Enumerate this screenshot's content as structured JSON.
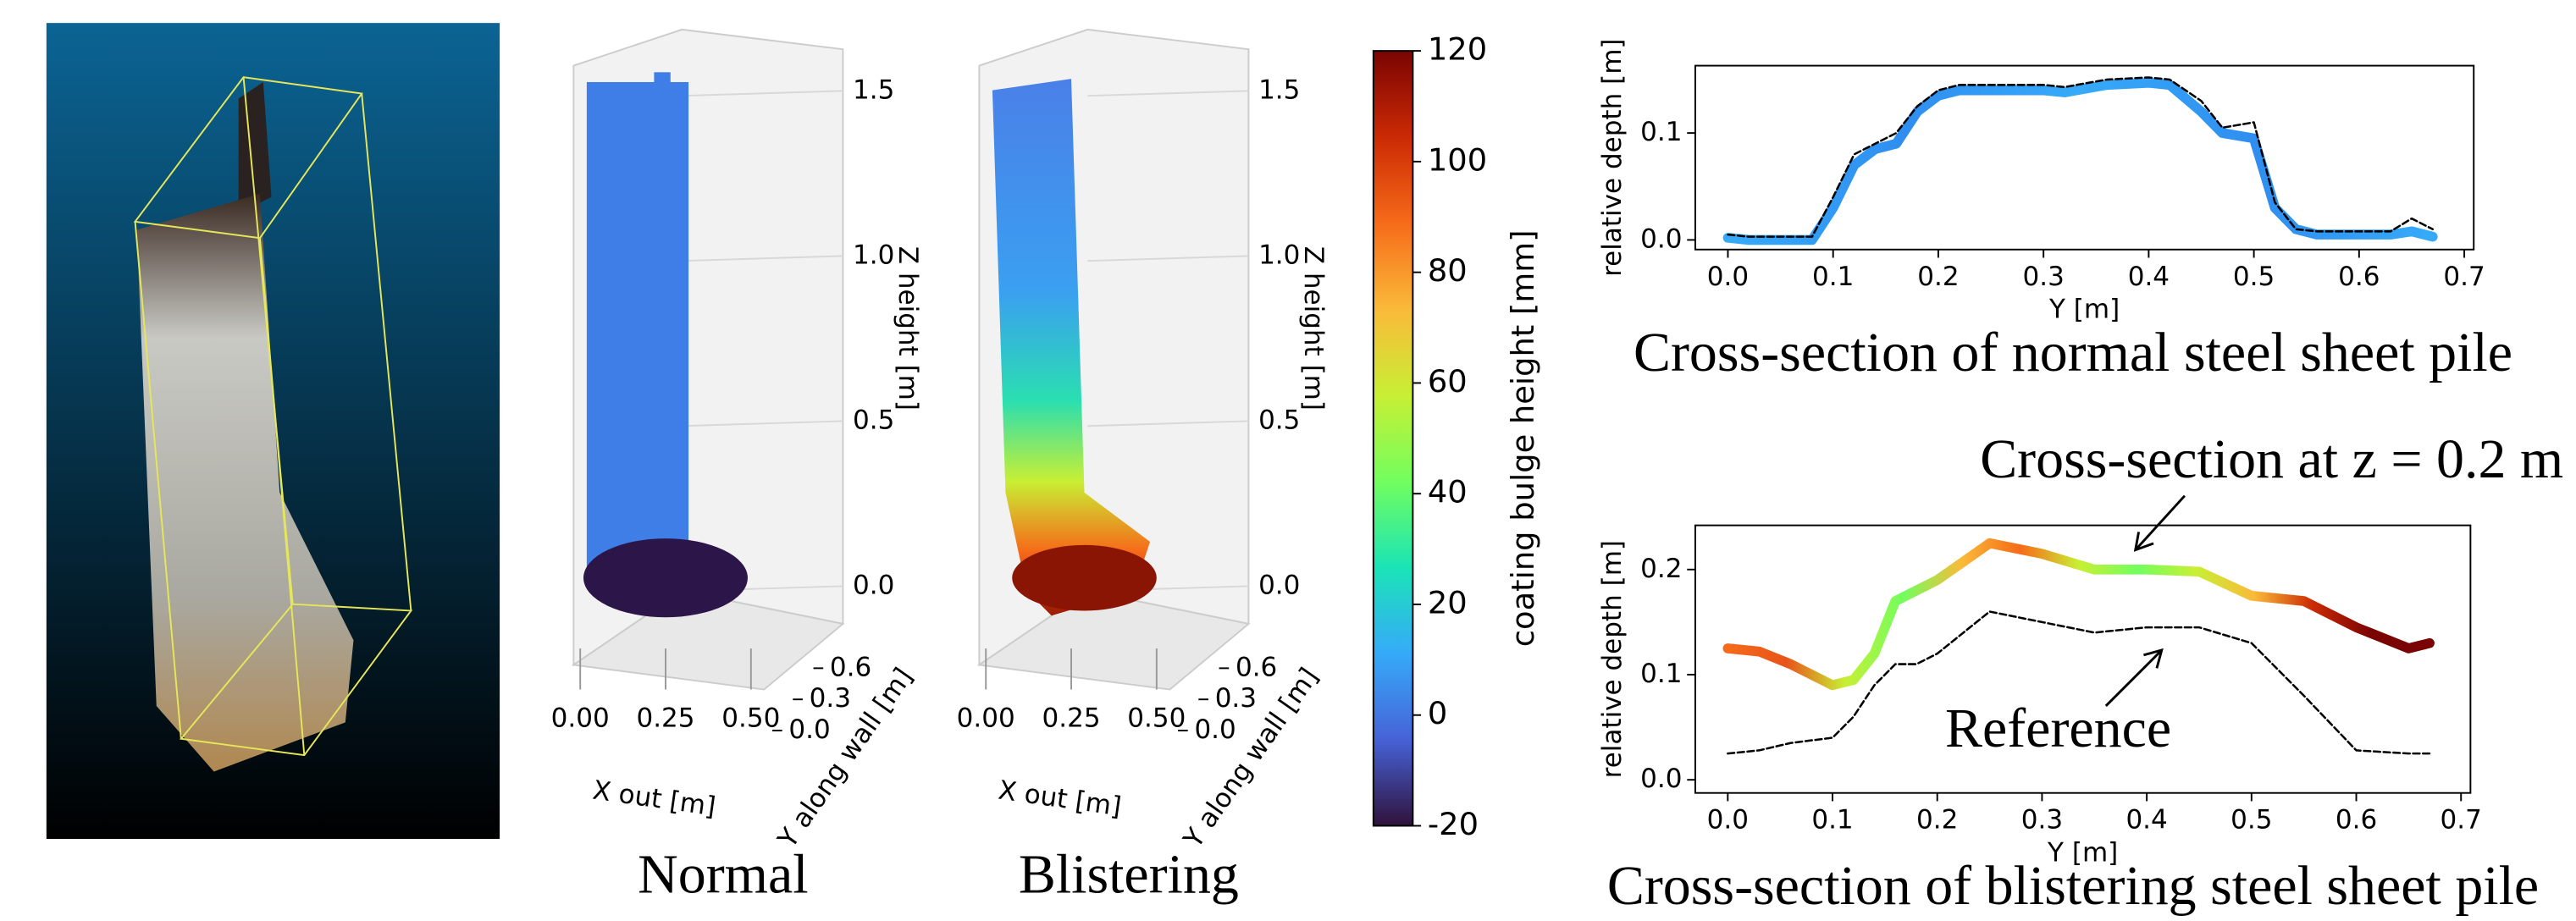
{
  "chart_data": [
    {
      "type": "scatter3d",
      "title": "Normal",
      "xlabel": "X out [m]",
      "ylabel": "Y along wall [m]",
      "zlabel": "Z height [m]",
      "xlim": [
        -0.03,
        0.55
      ],
      "ylim": [
        0,
        0.75
      ],
      "zlim": [
        -0.15,
        1.65
      ],
      "xticks": [
        {
          "value": 0,
          "label": "0.00"
        },
        {
          "value": 0.25,
          "label": "0.25"
        },
        {
          "value": 0.5,
          "label": "0.50"
        }
      ],
      "yticks": [
        {
          "value": 0,
          "label": "0.0"
        },
        0.3,
        0.6
      ],
      "zticks": [
        {
          "value": 0,
          "label": "0.0"
        },
        0.5,
        {
          "value": 1,
          "label": "1.0"
        },
        1.5
      ]
    },
    {
      "type": "scatter3d",
      "title": "Blistering",
      "xlabel": "X out [m]",
      "ylabel": "Y along wall [m]",
      "zlabel": "Z height [m]",
      "xlim": [
        -0.03,
        0.55
      ],
      "ylim": [
        0,
        0.75
      ],
      "zlim": [
        -0.15,
        1.65
      ],
      "xticks": [
        {
          "value": 0,
          "label": "0.00"
        },
        {
          "value": 0.25,
          "label": "0.25"
        },
        {
          "value": 0.5,
          "label": "0.50"
        }
      ],
      "yticks": [
        {
          "value": 0,
          "label": "0.0"
        },
        0.3,
        0.6
      ],
      "zticks": [
        {
          "value": 0,
          "label": "0.0"
        },
        0.5,
        {
          "value": 1,
          "label": "1.0"
        },
        1.5
      ]
    },
    {
      "type": "colorbar",
      "label": "coating bulge height [mm]",
      "ylim": [
        -20,
        120
      ],
      "yticks": [
        -20,
        0,
        20,
        40,
        60,
        80,
        100,
        120
      ],
      "colors": [
        "#30123b",
        "#4662d7",
        "#36aaf9",
        "#1ae4b6",
        "#72fe5e",
        "#c8ef34",
        "#faba39",
        "#f66b19",
        "#cb2a04",
        "#7a0403"
      ]
    },
    {
      "type": "line",
      "title": "Cross-section of normal steel sheet pile",
      "xlabel": "Y [m]",
      "ylabel": "relative depth [m]",
      "xlim": [
        -0.031,
        0.709
      ],
      "ylim": [
        -0.009,
        0.163
      ],
      "xticks": [
        {
          "value": 0,
          "label": "0.0"
        },
        0.1,
        0.2,
        0.3,
        0.4,
        0.5,
        0.6,
        0.7
      ],
      "yticks": [
        {
          "value": 0,
          "label": "0.0"
        },
        0.1
      ],
      "series": [
        {
          "style": "solid",
          "colors": [
            "#36aaf9",
            "#2f8ef0",
            "#36aaf9",
            "#2f8ef0",
            "#36aaf9"
          ],
          "x": [
            0,
            0.02,
            0.05,
            0.08,
            0.1,
            0.12,
            0.14,
            0.16,
            0.18,
            0.2,
            0.22,
            0.26,
            0.3,
            0.32,
            0.36,
            0.4,
            0.42,
            0.45,
            0.47,
            0.5,
            0.52,
            0.54,
            0.56,
            0.6,
            0.63,
            0.65,
            0.67
          ],
          "values": [
            0.002,
            0,
            0,
            0,
            0.03,
            0.07,
            0.085,
            0.09,
            0.12,
            0.135,
            0.14,
            0.14,
            0.14,
            0.138,
            0.145,
            0.147,
            0.145,
            0.12,
            0.1,
            0.095,
            0.03,
            0.01,
            0.005,
            0.005,
            0.005,
            0.008,
            0.003
          ]
        },
        {
          "style": "dashed",
          "colors": [
            "#000000"
          ],
          "x": [
            0,
            0.02,
            0.05,
            0.08,
            0.1,
            0.12,
            0.14,
            0.16,
            0.18,
            0.2,
            0.22,
            0.26,
            0.3,
            0.32,
            0.36,
            0.4,
            0.42,
            0.45,
            0.47,
            0.5,
            0.52,
            0.54,
            0.56,
            0.6,
            0.63,
            0.65,
            0.67
          ],
          "values": [
            0.005,
            0.003,
            0.003,
            0.003,
            0.04,
            0.08,
            0.09,
            0.1,
            0.125,
            0.14,
            0.145,
            0.145,
            0.145,
            0.143,
            0.15,
            0.152,
            0.15,
            0.13,
            0.105,
            0.11,
            0.035,
            0.01,
            0.008,
            0.008,
            0.008,
            0.02,
            0.01
          ]
        }
      ]
    },
    {
      "type": "line",
      "title": "Cross-section of blistering steel sheet pile",
      "xlabel": "Y [m]",
      "ylabel": "relative depth [m]",
      "xlim": [
        -0.031,
        0.709
      ],
      "ylim": [
        -0.0125,
        0.242
      ],
      "xticks": [
        {
          "value": 0,
          "label": "0.0"
        },
        0.1,
        0.2,
        0.3,
        0.4,
        0.5,
        0.6,
        0.7
      ],
      "yticks": [
        {
          "value": 0,
          "label": "0.0"
        },
        0.1,
        0.2
      ],
      "annotations": [
        "Cross-section at z = 0.2 m",
        "Reference"
      ],
      "series": [
        {
          "style": "solid",
          "colors": [
            "#f66b19",
            "#e8541a",
            "#c8ef34",
            "#72fe5e",
            "#faba39",
            "#f66b19",
            "#c8ef34",
            "#72fe5e",
            "#c8ef34",
            "#faba39",
            "#cb2a04",
            "#7a0403",
            "#7a0403"
          ],
          "x": [
            0,
            0.03,
            0.06,
            0.1,
            0.12,
            0.14,
            0.16,
            0.18,
            0.2,
            0.25,
            0.3,
            0.35,
            0.4,
            0.45,
            0.5,
            0.55,
            0.6,
            0.65,
            0.67
          ],
          "values": [
            0.125,
            0.122,
            0.11,
            0.09,
            0.095,
            0.12,
            0.17,
            0.18,
            0.19,
            0.225,
            0.215,
            0.2,
            0.2,
            0.198,
            0.175,
            0.17,
            0.145,
            0.125,
            0.13
          ]
        },
        {
          "style": "dashed",
          "colors": [
            "#000000"
          ],
          "x": [
            0,
            0.03,
            0.06,
            0.1,
            0.12,
            0.14,
            0.16,
            0.18,
            0.2,
            0.25,
            0.3,
            0.35,
            0.4,
            0.45,
            0.5,
            0.55,
            0.6,
            0.65,
            0.67
          ],
          "values": [
            0.025,
            0.028,
            0.035,
            0.04,
            0.06,
            0.09,
            0.11,
            0.11,
            0.12,
            0.16,
            0.15,
            0.14,
            0.145,
            0.145,
            0.13,
            0.08,
            0.028,
            0.025,
            0.025
          ]
        }
      ]
    }
  ]
}
